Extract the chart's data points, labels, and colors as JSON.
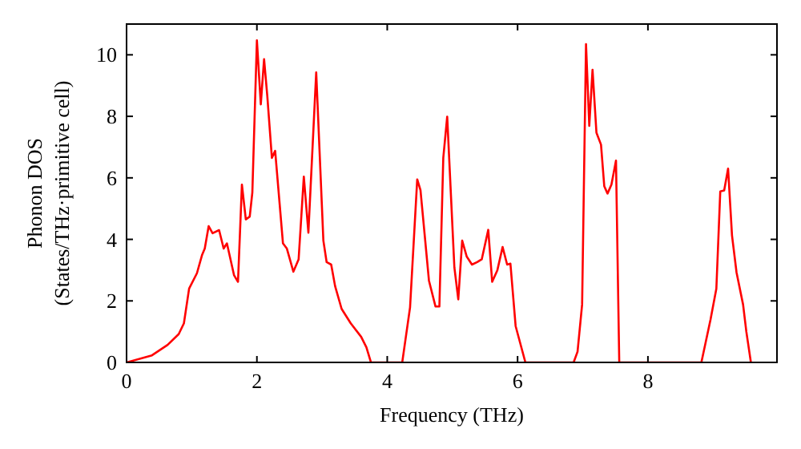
{
  "chart_data": {
    "type": "line",
    "xlabel": "Frequency (THz)",
    "ylabel": "Phonon DOS\n(States/THz·primitive cell)",
    "xlim": [
      0,
      9.98
    ],
    "ylim": [
      0,
      11
    ],
    "xticks": [
      0,
      2,
      4,
      6,
      8
    ],
    "yticks": [
      0,
      2,
      4,
      6,
      8,
      10
    ],
    "grid": false,
    "marker": "none",
    "line_style": "solid",
    "series": [
      {
        "color": "#ff0000",
        "x": [
          0,
          0.39,
          0.63,
          0.8,
          0.88,
          0.96,
          1.08,
          1.16,
          1.2,
          1.26,
          1.32,
          1.42,
          1.49,
          1.54,
          1.65,
          1.71,
          1.77,
          1.83,
          1.89,
          1.93,
          2.0,
          2.06,
          2.11,
          2.16,
          2.23,
          2.28,
          2.4,
          2.46,
          2.56,
          2.64,
          2.72,
          2.79,
          2.91,
          3.02,
          3.07,
          3.14,
          3.2,
          3.3,
          3.44,
          3.6,
          3.68,
          3.75,
          4.23,
          4.35,
          4.46,
          4.51,
          4.64,
          4.74,
          4.8,
          4.86,
          4.92,
          5.03,
          5.09,
          5.15,
          5.22,
          5.3,
          5.38,
          5.45,
          5.55,
          5.61,
          5.69,
          5.77,
          5.84,
          5.89,
          5.97,
          6.12,
          6.86,
          6.92,
          6.99,
          7.05,
          7.1,
          7.15,
          7.21,
          7.28,
          7.33,
          7.38,
          7.44,
          7.51,
          7.56,
          8.82,
          8.96,
          9.05,
          9.11,
          9.17,
          9.23,
          9.29,
          9.36,
          9.46,
          9.51,
          9.58
        ],
        "values": [
          0,
          0.23,
          0.57,
          0.92,
          1.27,
          2.4,
          2.9,
          3.5,
          3.7,
          4.43,
          4.2,
          4.3,
          3.7,
          3.87,
          2.83,
          2.62,
          5.78,
          4.65,
          4.74,
          5.52,
          10.47,
          8.39,
          9.86,
          8.65,
          6.65,
          6.88,
          3.87,
          3.7,
          2.95,
          3.35,
          6.04,
          4.22,
          9.43,
          3.96,
          3.26,
          3.18,
          2.48,
          1.74,
          1.27,
          0.83,
          0.49,
          0,
          0,
          1.79,
          5.95,
          5.6,
          2.66,
          1.82,
          1.82,
          6.65,
          7.99,
          3.09,
          2.05,
          3.96,
          3.44,
          3.18,
          3.26,
          3.35,
          4.31,
          2.62,
          3.0,
          3.75,
          3.18,
          3.21,
          1.18,
          0,
          0,
          0.35,
          1.88,
          10.35,
          7.69,
          9.51,
          7.47,
          7.08,
          5.73,
          5.49,
          5.78,
          6.56,
          0,
          0,
          1.39,
          2.4,
          5.56,
          5.59,
          6.3,
          4.13,
          2.92,
          1.88,
          1.0,
          0
        ]
      }
    ]
  }
}
